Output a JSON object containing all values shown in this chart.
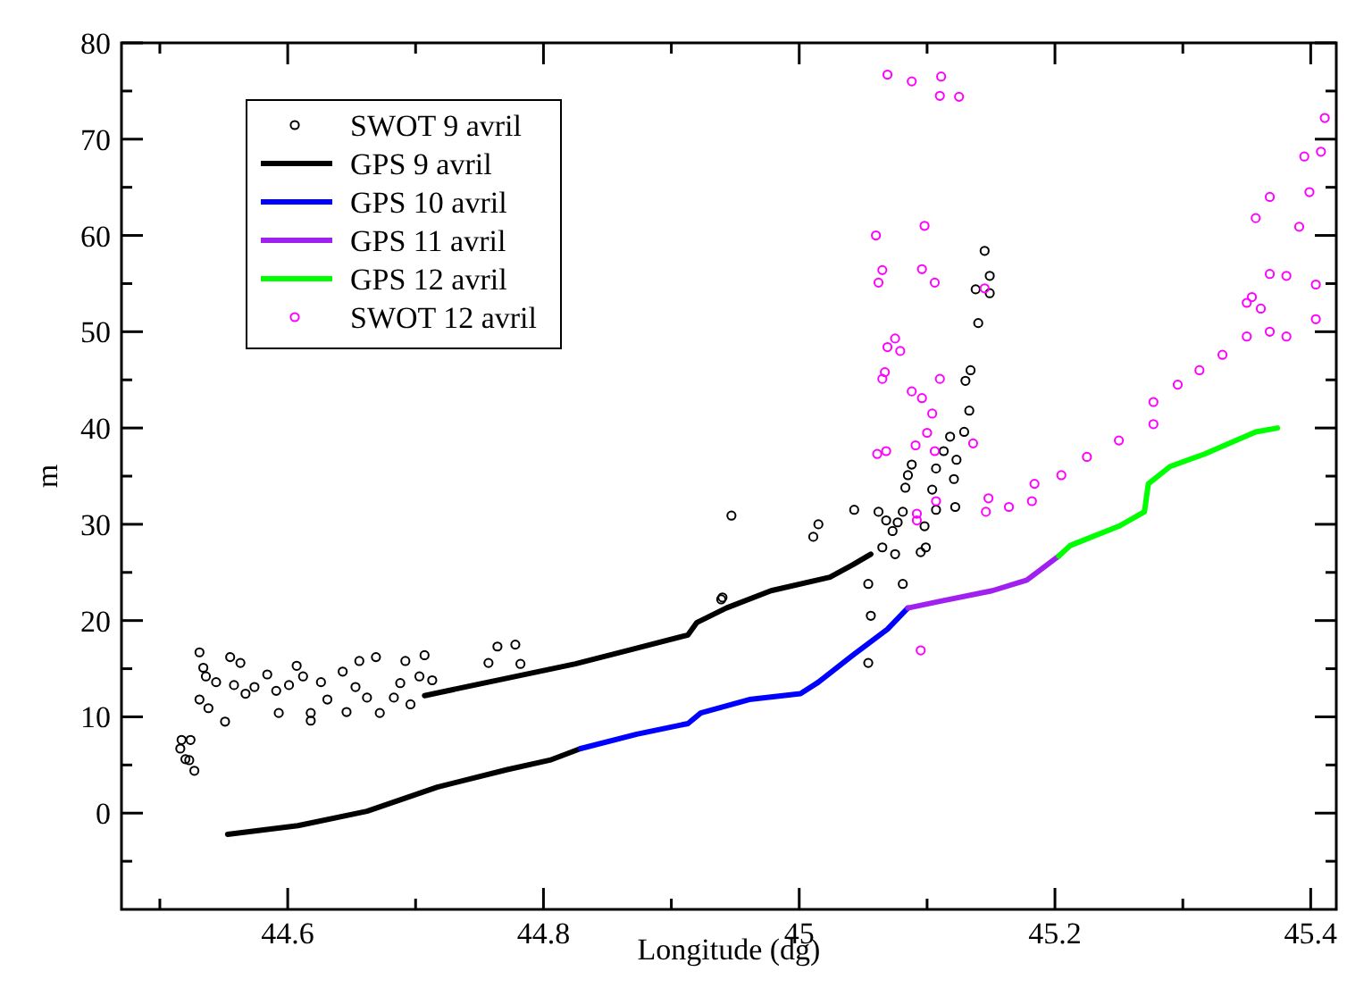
{
  "chart_data": {
    "type": "line",
    "xlabel": "Longitude (dg)",
    "ylabel": "m",
    "xlim": [
      44.47,
      45.42
    ],
    "ylim": [
      -10,
      80
    ],
    "xticks": [
      {
        "value": 44.5,
        "label": null
      },
      44.6,
      {
        "value": 44.7,
        "label": null
      },
      44.8,
      {
        "value": 44.9,
        "label": null
      },
      45,
      {
        "value": 45.1,
        "label": null
      },
      45.2,
      {
        "value": 45.3,
        "label": null
      },
      45.4
    ],
    "yticks": [
      {
        "value": -5,
        "label": null
      },
      0,
      {
        "value": 5,
        "label": null
      },
      10,
      {
        "value": 15,
        "label": null
      },
      20,
      {
        "value": 25,
        "label": null
      },
      30,
      {
        "value": 35,
        "label": null
      },
      40,
      {
        "value": 45,
        "label": null
      },
      50,
      {
        "value": 55,
        "label": null
      },
      60,
      {
        "value": 65,
        "label": null
      },
      70,
      {
        "value": 75,
        "label": null
      },
      80
    ],
    "legend": "top left",
    "grid": false,
    "series": [
      {
        "name": "SWOT 9 avril",
        "type": "scatter",
        "marker": "circle",
        "color": "#000000",
        "x": [
          44.516,
          44.517,
          44.524,
          44.52,
          44.523,
          44.527,
          44.531,
          44.534,
          44.531,
          44.538,
          44.536,
          44.544,
          44.551,
          44.555,
          44.563,
          44.558,
          44.567,
          44.574,
          44.584,
          44.593,
          44.591,
          44.601,
          44.607,
          44.612,
          44.618,
          44.618,
          44.626,
          44.631,
          44.643,
          44.646,
          44.656,
          44.653,
          44.669,
          44.662,
          44.672,
          44.683,
          44.692,
          44.688,
          44.707,
          44.703,
          44.713,
          44.696,
          44.757,
          44.764,
          44.778,
          44.782,
          44.939,
          44.94,
          44.947,
          45.011,
          45.015,
          45.043,
          45.054,
          45.056,
          45.054,
          45.062,
          45.065,
          45.068,
          45.073,
          45.075,
          45.077,
          45.081,
          45.081,
          45.083,
          45.085,
          45.088,
          45.095,
          45.098,
          45.099,
          45.104,
          45.107,
          45.107,
          45.113,
          45.118,
          45.121,
          45.122,
          45.123,
          45.129,
          45.13,
          45.133,
          45.134,
          45.138,
          45.14,
          45.145,
          45.149,
          45.149
        ],
        "values": [
          6.7,
          7.6,
          7.6,
          5.6,
          5.5,
          4.4,
          16.7,
          15.1,
          11.8,
          10.9,
          14.2,
          13.6,
          9.5,
          16.2,
          15.6,
          13.3,
          12.4,
          13.1,
          14.4,
          10.4,
          12.7,
          13.3,
          15.3,
          14.2,
          10.4,
          9.6,
          13.6,
          11.8,
          14.7,
          10.5,
          15.8,
          13.1,
          16.2,
          12,
          10.4,
          12,
          15.8,
          13.5,
          16.4,
          14.2,
          13.8,
          11.3,
          15.6,
          17.3,
          17.5,
          15.5,
          22.2,
          22.4,
          30.9,
          28.7,
          30,
          31.5,
          23.8,
          20.5,
          15.6,
          31.3,
          27.6,
          30.4,
          29.3,
          26.9,
          30.2,
          31.3,
          23.8,
          33.8,
          35.1,
          36.2,
          27.1,
          29.8,
          27.6,
          33.6,
          35.8,
          31.5,
          37.6,
          39.1,
          34.7,
          31.8,
          36.7,
          39.6,
          44.9,
          41.8,
          46,
          54.4,
          50.9,
          58.4,
          55.8,
          54
        ]
      },
      {
        "name": "GPS 9 avril",
        "line_style": "solid",
        "color": "#000000",
        "x": [
          44.553,
          44.608,
          44.662,
          44.717,
          44.771,
          44.805,
          44.829,
          null,
          44.707,
          44.771,
          44.825,
          44.866,
          44.913,
          44.92,
          44.943,
          44.978,
          45.024,
          45.042,
          45.056
        ],
        "values": [
          -2.2,
          -1.3,
          0.2,
          2.7,
          4.5,
          5.5,
          6.7,
          null,
          12.2,
          14,
          15.5,
          16.9,
          18.5,
          19.8,
          21.3,
          23.1,
          24.5,
          25.8,
          26.9
        ]
      },
      {
        "name": "GPS 10 avril",
        "line_style": "solid",
        "color": "#0000ff",
        "x": [
          44.829,
          44.873,
          44.913,
          44.923,
          44.961,
          45.001,
          45.015,
          45.042,
          45.069,
          45.085
        ],
        "values": [
          6.7,
          8.2,
          9.3,
          10.4,
          11.8,
          12.4,
          13.6,
          16.4,
          19.1,
          21.3
        ]
      },
      {
        "name": "GPS 11 avril",
        "line_style": "solid",
        "color": "#a020f0",
        "x": [
          45.085,
          45.11,
          45.151,
          45.178,
          45.191,
          45.203
        ],
        "values": [
          21.3,
          22,
          23.1,
          24.2,
          25.5,
          26.7
        ]
      },
      {
        "name": "GPS 12 avril",
        "line_style": "solid",
        "color": "#00ff00",
        "x": [
          45.203,
          45.212,
          45.25,
          45.27,
          45.273,
          45.29,
          45.317,
          45.357,
          45.374
        ],
        "values": [
          26.7,
          27.8,
          29.8,
          31.3,
          34.2,
          36,
          37.3,
          39.6,
          40
        ]
      },
      {
        "name": "SWOT 12 avril",
        "type": "scatter",
        "marker": "circle",
        "color": "#ff00ff",
        "x": [
          45.146,
          45.164,
          45.182,
          45.184,
          45.205,
          45.225,
          45.25,
          45.277,
          45.277,
          45.296,
          45.313,
          45.331,
          45.35,
          45.368,
          45.381,
          45.404,
          45.404,
          45.35,
          45.368,
          45.391,
          45.399,
          45.408,
          45.069,
          45.088,
          45.111,
          45.11,
          45.125,
          45.06,
          45.098,
          45.065,
          45.062,
          45.096,
          45.106,
          45.075,
          45.069,
          45.079,
          45.067,
          45.065,
          45.11,
          45.088,
          45.096,
          45.104,
          45.1,
          45.091,
          45.136,
          45.061,
          45.068,
          45.106,
          45.107,
          45.092,
          45.148,
          45.092,
          45.145,
          45.095,
          45.357,
          45.368,
          45.395,
          45.411,
          45.354,
          45.361,
          45.381
        ],
        "values": [
          31.3,
          31.8,
          32.4,
          34.2,
          35.1,
          37,
          38.7,
          40.4,
          42.7,
          44.5,
          46,
          47.6,
          49.5,
          50,
          49.5,
          51.3,
          54.9,
          53,
          56,
          60.9,
          64.5,
          68.7,
          76.7,
          76,
          76.5,
          74.5,
          74.4,
          60,
          61,
          56.4,
          55.1,
          56.5,
          55.1,
          49.3,
          48.4,
          48,
          45.8,
          45.1,
          45.1,
          43.8,
          43.1,
          41.5,
          39.5,
          38.2,
          38.4,
          37.3,
          37.6,
          37.6,
          32.4,
          31.1,
          32.7,
          30.4,
          54.5,
          16.9,
          61.8,
          64,
          68.2,
          72.2,
          53.6,
          52.4,
          55.8
        ]
      }
    ]
  }
}
